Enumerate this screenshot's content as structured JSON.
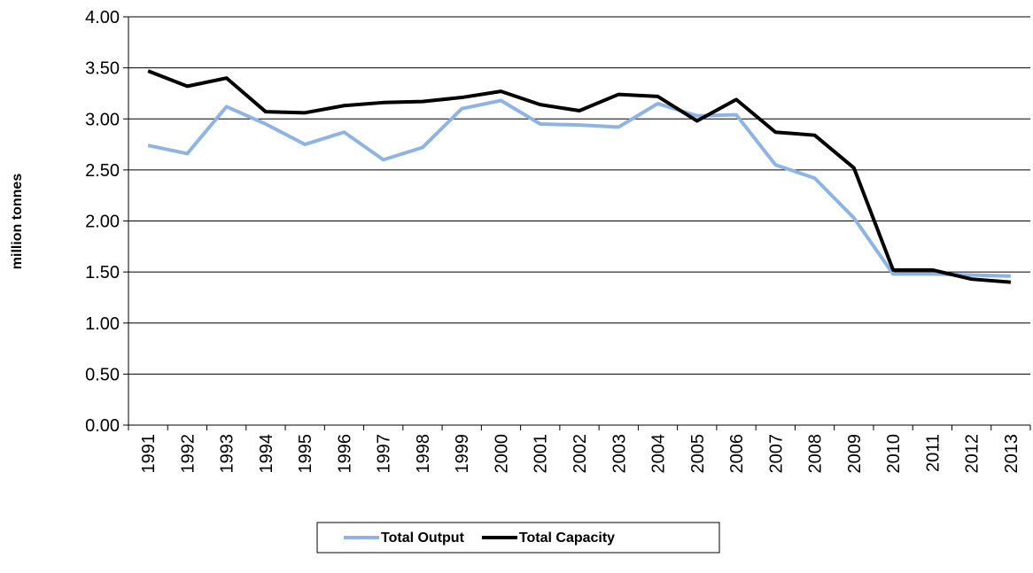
{
  "chart_data": {
    "type": "line",
    "y_label": "million tonnes",
    "categories": [
      "1991",
      "1992",
      "1993",
      "1994",
      "1995",
      "1996",
      "1997",
      "1998",
      "1999",
      "2000",
      "2001",
      "2002",
      "2003",
      "2004",
      "2005",
      "2006",
      "2007",
      "2008",
      "2009",
      "2010",
      "2011",
      "2012",
      "2013"
    ],
    "series": [
      {
        "name": "Total Output",
        "color": "#8eb4e3",
        "values": [
          2.74,
          2.66,
          3.12,
          2.95,
          2.75,
          2.87,
          2.6,
          2.72,
          3.1,
          3.18,
          2.95,
          2.94,
          2.92,
          3.15,
          3.03,
          3.04,
          2.55,
          2.42,
          2.03,
          1.48,
          1.48,
          1.47,
          1.46
        ]
      },
      {
        "name": "Total Capacity",
        "color": "#000000",
        "values": [
          3.47,
          3.32,
          3.4,
          3.07,
          3.06,
          3.13,
          3.16,
          3.17,
          3.21,
          3.27,
          3.14,
          3.08,
          3.24,
          3.22,
          2.98,
          3.19,
          2.87,
          2.84,
          2.52,
          1.52,
          1.52,
          1.43,
          1.4
        ]
      }
    ],
    "ylim": [
      0,
      4
    ],
    "yticks": [
      {
        "value": 0,
        "label": "0.00"
      },
      {
        "value": 0.5,
        "label": "0.50"
      },
      {
        "value": 1,
        "label": "1.00"
      },
      {
        "value": 1.5,
        "label": "1.50"
      },
      {
        "value": 2,
        "label": "2.00"
      },
      {
        "value": 2.5,
        "label": "2.50"
      },
      {
        "value": 3,
        "label": "3.00"
      },
      {
        "value": 3.5,
        "label": "3.50"
      },
      {
        "value": 4,
        "label": "4.00"
      }
    ],
    "grid": true,
    "legend": "bottom"
  }
}
